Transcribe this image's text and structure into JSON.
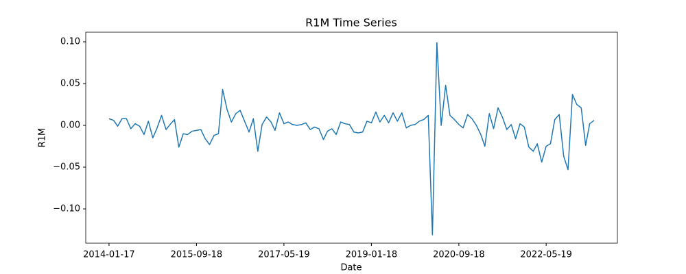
{
  "chart_data": {
    "type": "line",
    "title": "R1M Time Series",
    "x_label": "Date",
    "y_label": "R1M",
    "color": "#1f77b4",
    "grid": false,
    "x": [
      "2014-01-17",
      "2014-02-18",
      "2014-03-18",
      "2014-04-18",
      "2014-05-18",
      "2014-06-18",
      "2014-07-18",
      "2014-08-18",
      "2014-09-18",
      "2014-10-18",
      "2014-11-18",
      "2014-12-18",
      "2015-01-18",
      "2015-02-18",
      "2015-03-18",
      "2015-04-18",
      "2015-05-18",
      "2015-06-18",
      "2015-07-18",
      "2015-08-18",
      "2015-09-18",
      "2015-10-18",
      "2015-11-18",
      "2015-12-18",
      "2016-01-18",
      "2016-02-18",
      "2016-03-18",
      "2016-04-18",
      "2016-05-18",
      "2016-06-18",
      "2016-07-18",
      "2016-08-18",
      "2016-09-18",
      "2016-10-18",
      "2016-11-18",
      "2016-12-18",
      "2017-01-18",
      "2017-02-18",
      "2017-03-18",
      "2017-04-18",
      "2017-05-19",
      "2017-06-18",
      "2017-07-18",
      "2017-08-18",
      "2017-09-18",
      "2017-10-18",
      "2017-11-18",
      "2017-12-18",
      "2018-01-18",
      "2018-02-18",
      "2018-03-18",
      "2018-04-18",
      "2018-05-18",
      "2018-06-18",
      "2018-07-18",
      "2018-08-18",
      "2018-09-18",
      "2018-10-18",
      "2018-11-18",
      "2018-12-18",
      "2019-01-18",
      "2019-02-18",
      "2019-03-18",
      "2019-04-18",
      "2019-05-18",
      "2019-06-18",
      "2019-07-18",
      "2019-08-18",
      "2019-09-18",
      "2019-10-18",
      "2019-11-18",
      "2019-12-18",
      "2020-01-18",
      "2020-02-18",
      "2020-03-18",
      "2020-04-18",
      "2020-05-18",
      "2020-06-18",
      "2020-07-18",
      "2020-08-18",
      "2020-09-18",
      "2020-10-18",
      "2020-11-18",
      "2020-12-18",
      "2021-01-18",
      "2021-02-18",
      "2021-03-18",
      "2021-04-18",
      "2021-05-18",
      "2021-06-18",
      "2021-07-18",
      "2021-08-18",
      "2021-09-18",
      "2021-10-18",
      "2021-11-18",
      "2021-12-18",
      "2022-01-18",
      "2022-02-18",
      "2022-03-18",
      "2022-04-18",
      "2022-05-19",
      "2022-06-18",
      "2022-07-18",
      "2022-08-18",
      "2022-09-18",
      "2022-10-18",
      "2022-11-18",
      "2022-12-18",
      "2023-01-18",
      "2023-02-18",
      "2023-03-18",
      "2023-04-18"
    ],
    "values": [
      0.008,
      0.006,
      -0.001,
      0.008,
      0.008,
      -0.004,
      0.002,
      -0.001,
      -0.011,
      0.005,
      -0.015,
      -0.003,
      0.012,
      -0.005,
      0.001,
      0.007,
      -0.026,
      -0.01,
      -0.011,
      -0.007,
      -0.006,
      -0.005,
      -0.016,
      -0.023,
      -0.012,
      -0.01,
      0.043,
      0.019,
      0.004,
      0.014,
      0.018,
      0.005,
      -0.008,
      0.008,
      -0.031,
      0.001,
      0.01,
      0.004,
      -0.006,
      0.015,
      0.002,
      0.004,
      0.001,
      0.0,
      0.001,
      0.003,
      -0.005,
      -0.002,
      -0.004,
      -0.017,
      -0.007,
      -0.004,
      -0.011,
      0.004,
      0.002,
      0.001,
      -0.008,
      -0.009,
      -0.008,
      0.005,
      0.003,
      0.016,
      0.004,
      0.012,
      0.003,
      0.015,
      0.005,
      0.015,
      -0.003,
      0.0,
      0.001,
      0.005,
      0.007,
      0.012,
      -0.131,
      0.099,
      0.0,
      0.048,
      0.012,
      0.007,
      0.001,
      -0.003,
      0.013,
      0.008,
      0.0,
      -0.011,
      -0.025,
      0.014,
      -0.004,
      0.021,
      0.01,
      -0.005,
      0.001,
      -0.016,
      0.002,
      -0.002,
      -0.026,
      -0.031,
      -0.022,
      -0.044,
      -0.025,
      -0.022,
      0.007,
      0.013,
      -0.037,
      -0.053,
      0.037,
      0.025,
      0.021,
      -0.024,
      0.002,
      0.006
    ],
    "xlim": [
      "2013-08-08",
      "2023-09-27"
    ],
    "xticks": [
      "2014-01-17",
      "2015-09-18",
      "2017-05-19",
      "2019-01-18",
      "2020-09-18",
      "2022-05-19"
    ],
    "ylim": [
      -0.141,
      0.1115
    ],
    "yticks": [
      {
        "value": -0.1,
        "label": "−0.10"
      },
      {
        "value": -0.05,
        "label": "−0.05"
      },
      {
        "value": 0,
        "label": "0.00"
      },
      {
        "value": 0.05,
        "label": "0.05"
      },
      {
        "value": 0.1,
        "label": "0.10"
      }
    ]
  }
}
